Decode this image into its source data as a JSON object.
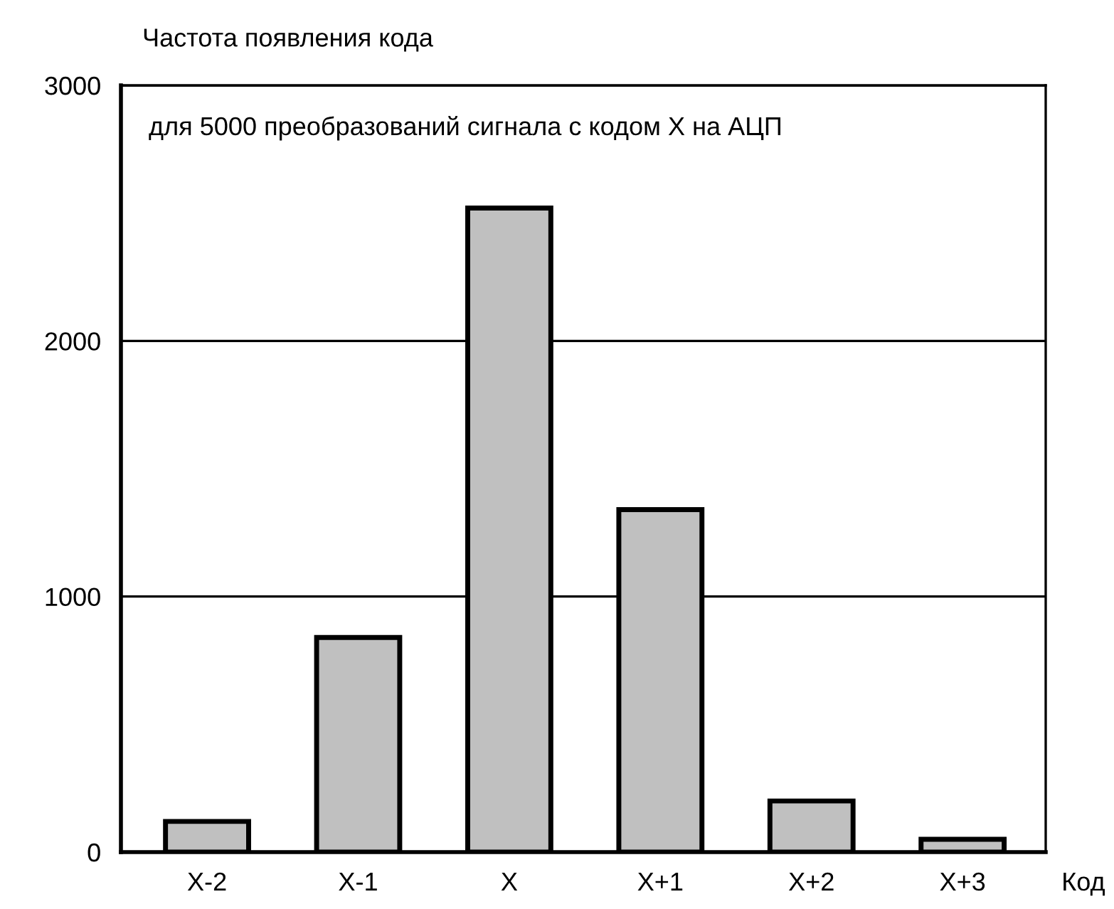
{
  "chart_data": {
    "type": "bar",
    "ylabel": "Частота появления кода",
    "xlabel": "Код",
    "annotations": [
      "для 5000 преобразований сигнала с кодом X на АЦП"
    ],
    "categories": [
      "X-2",
      "X-1",
      "X",
      "X+1",
      "X+2",
      "X+3"
    ],
    "values": [
      120,
      840,
      2520,
      1340,
      200,
      50
    ],
    "color": "#c0c0c0",
    "ylim": [
      0,
      3000
    ],
    "yticks": [
      0,
      1000,
      2000,
      3000
    ],
    "grid": "y",
    "legend": false
  }
}
